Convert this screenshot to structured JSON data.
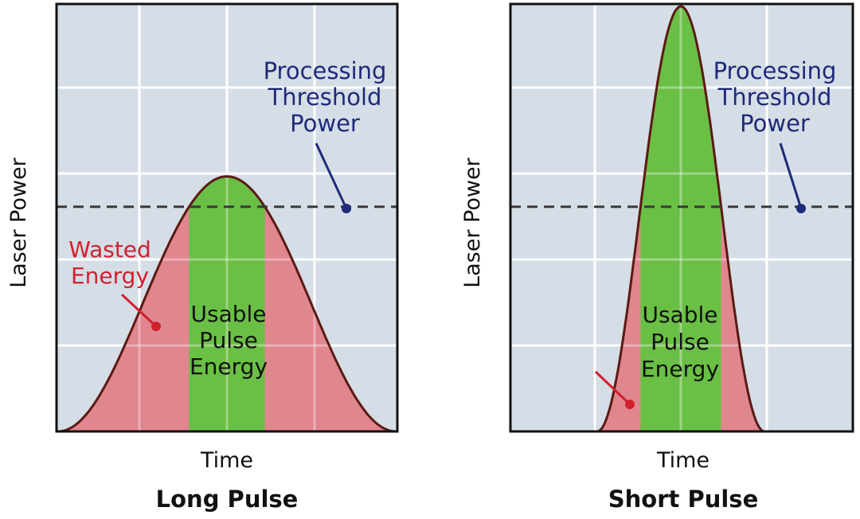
{
  "colors": {
    "background_plot": "#d5dde6",
    "grid": "#ffffff",
    "frame": "#111111",
    "curve": "#5a1a12",
    "wasted_fill": "#e0868f",
    "usable_fill": "#6abf45",
    "threshold_line": "#3a3a3a",
    "threshold_label": "#1f2a7a",
    "wasted_label": "#d0202e",
    "text": "#111111"
  },
  "panels": [
    {
      "id": "long",
      "title": "Long Pulse",
      "xlabel": "Time",
      "ylabel": "Laser Power",
      "usable_label": [
        "Usable",
        "Pulse",
        "Energy"
      ],
      "wasted_label": [
        "Wasted",
        "Energy"
      ],
      "threshold_label": [
        "Processing",
        "Threshold",
        "Power"
      ],
      "pulse_peak": 0.6,
      "pulse_width": 0.25,
      "threshold": 0.52
    },
    {
      "id": "short",
      "title": "Short Pulse",
      "xlabel": "Time",
      "ylabel": "Laser Power",
      "usable_label": [
        "Usable",
        "Pulse",
        "Energy"
      ],
      "wasted_label": [],
      "threshold_label": [
        "Processing",
        "Threshold",
        "Power"
      ],
      "pulse_peak": 1.0,
      "pulse_width": 0.095,
      "threshold": 0.52
    }
  ]
}
